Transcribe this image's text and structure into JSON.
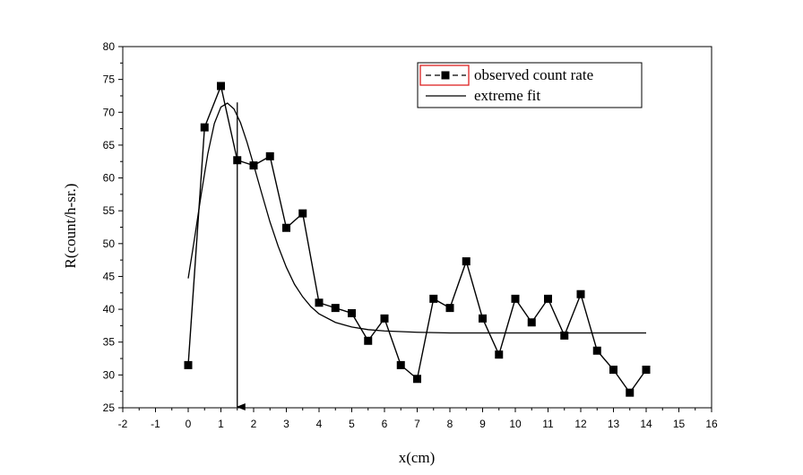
{
  "chart_data": {
    "type": "line",
    "title": "",
    "xlabel": "x(cm)",
    "ylabel": "R(count/h-sr.)",
    "xlim": [
      -2,
      16
    ],
    "ylim": [
      25,
      80
    ],
    "xticks": [
      "-2",
      "-1",
      "0",
      "1",
      "2",
      "3",
      "4",
      "5",
      "6",
      "7",
      "8",
      "9",
      "10",
      "11",
      "12",
      "13",
      "14",
      "15",
      "16"
    ],
    "yticks": [
      "25",
      "30",
      "35",
      "40",
      "45",
      "50",
      "55",
      "60",
      "65",
      "70",
      "75",
      "80"
    ],
    "grid": false,
    "legend_position": "top-right",
    "series": [
      {
        "name": "observed count rate",
        "marker": "square",
        "color": "#000000",
        "x": [
          0,
          0.5,
          1,
          1.5,
          2,
          2.5,
          3,
          3.5,
          4,
          4.5,
          5,
          5.5,
          6,
          6.5,
          7,
          7.5,
          8,
          8.5,
          9,
          9.5,
          10,
          10.5,
          11,
          11.5,
          12,
          12.5,
          13,
          13.5,
          14
        ],
        "y": [
          31.5,
          67.7,
          74.0,
          62.7,
          61.9,
          63.3,
          52.4,
          54.6,
          41.0,
          40.2,
          39.4,
          35.2,
          38.6,
          31.5,
          29.4,
          41.6,
          40.2,
          47.3,
          38.6,
          33.1,
          41.6,
          38.0,
          41.6,
          36.0,
          42.3,
          33.7,
          30.8,
          27.3,
          30.8
        ]
      },
      {
        "name": "extreme fit",
        "marker": "none",
        "color": "#000000",
        "x": [
          0,
          0.2,
          0.4,
          0.6,
          0.8,
          1.0,
          1.2,
          1.4,
          1.6,
          1.8,
          2.0,
          2.25,
          2.5,
          2.75,
          3.0,
          3.25,
          3.5,
          3.75,
          4.0,
          4.5,
          5.0,
          5.5,
          6.0,
          6.5,
          7.0,
          8.0,
          9.0,
          10.0,
          12.0,
          14.0
        ],
        "y": [
          44.7,
          51.0,
          57.6,
          63.7,
          68.3,
          70.8,
          71.4,
          70.5,
          68.4,
          65.4,
          62.0,
          57.6,
          53.3,
          49.6,
          46.4,
          43.8,
          41.9,
          40.4,
          39.3,
          38.0,
          37.3,
          36.9,
          36.7,
          36.6,
          36.5,
          36.4,
          36.4,
          36.4,
          36.4,
          36.4
        ]
      }
    ],
    "annotations": [
      {
        "type": "arrow",
        "x": 1.5,
        "from_y": 71.5,
        "to_y": 25
      }
    ]
  }
}
